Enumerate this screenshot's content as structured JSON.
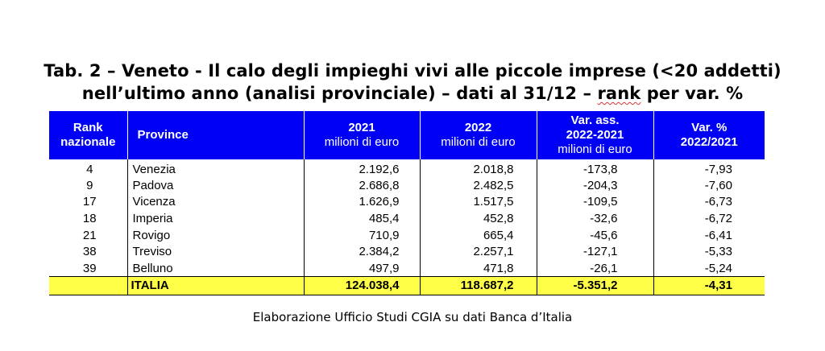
{
  "title": {
    "line1": "Tab. 2 – Veneto - Il calo degli impieghi vivi alle piccole imprese (<20 addetti)",
    "line2_prefix": "nell’ultimo anno (analisi provinciale) – dati al 31/12 – ",
    "line2_rank": "rank",
    "line2_suffix": " per var. %"
  },
  "table": {
    "headers": {
      "rank_line1": "Rank",
      "rank_line2": "nazionale",
      "province": "Province",
      "y2021": "2021",
      "y2021_unit": "milioni di euro",
      "y2022": "2022",
      "y2022_unit": "milioni di euro",
      "var_line1": "Var. ass.",
      "var_line2": "2022-2021",
      "var_unit": "milioni di euro",
      "pct_line1": "Var. %",
      "pct_line2": "2022/2021"
    },
    "rows": [
      {
        "rank": "4",
        "province": "Venezia",
        "y2021": "2.192,6",
        "y2022": "2.018,8",
        "var": "-173,8",
        "pct": "-7,93"
      },
      {
        "rank": "9",
        "province": "Padova",
        "y2021": "2.686,8",
        "y2022": "2.482,5",
        "var": "-204,3",
        "pct": "-7,60"
      },
      {
        "rank": "17",
        "province": "Vicenza",
        "y2021": "1.626,9",
        "y2022": "1.517,5",
        "var": "-109,5",
        "pct": "-6,73"
      },
      {
        "rank": "18",
        "province": "Imperia",
        "y2021": "485,4",
        "y2022": "452,8",
        "var": "-32,6",
        "pct": "-6,72"
      },
      {
        "rank": "21",
        "province": "Rovigo",
        "y2021": "710,9",
        "y2022": "665,4",
        "var": "-45,6",
        "pct": "-6,41"
      },
      {
        "rank": "38",
        "province": "Treviso",
        "y2021": "2.384,2",
        "y2022": "2.257,1",
        "var": "-127,1",
        "pct": "-5,33"
      },
      {
        "rank": "39",
        "province": "Belluno",
        "y2021": "497,9",
        "y2022": "471,8",
        "var": "-26,1",
        "pct": "-5,24"
      }
    ],
    "total": {
      "rank": "",
      "province": "ITALIA",
      "y2021": "124.038,4",
      "y2022": "118.687,2",
      "var": "-5.351,2",
      "pct": "-4,31"
    }
  },
  "source": "Elaborazione Ufficio Studi CGIA su dati Banca d’Italia",
  "colors": {
    "header_bg": "#0000f5",
    "header_text": "#ffffff",
    "total_bg": "#ffff47"
  }
}
